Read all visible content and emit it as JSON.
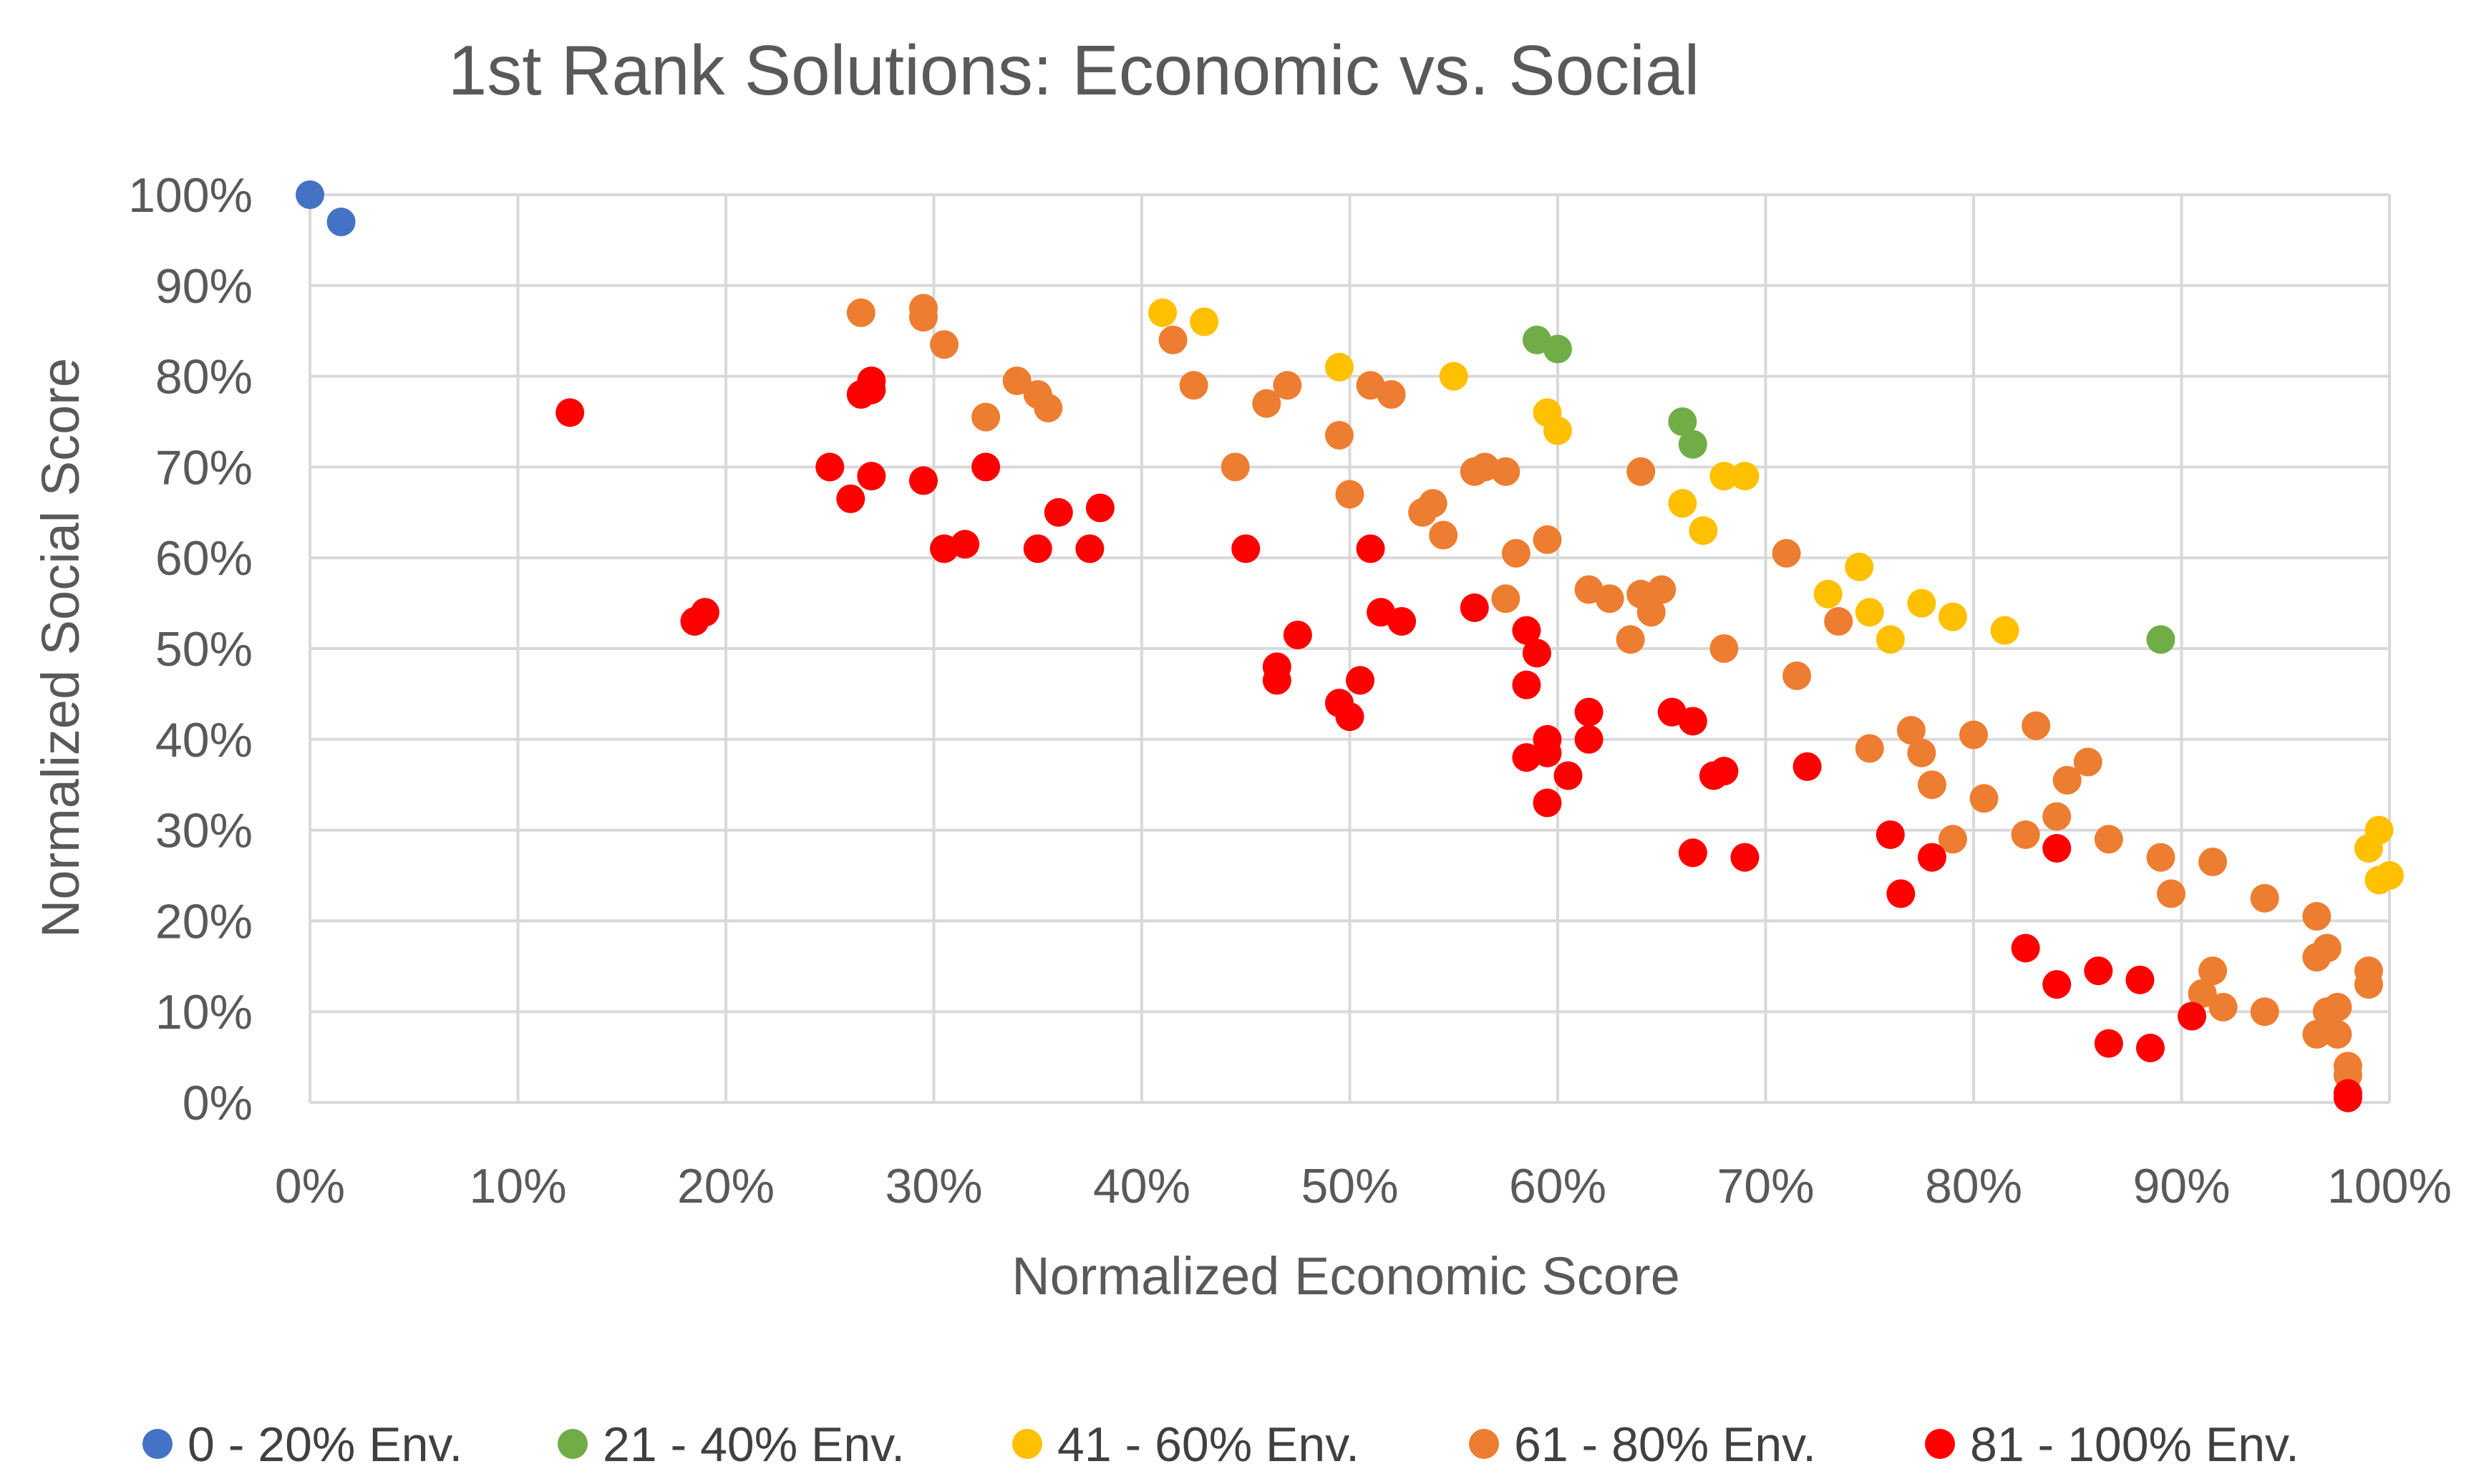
{
  "chart_data": {
    "type": "scatter",
    "title": "1st Rank Solutions: Economic vs. Social",
    "xlabel": "Normalized Economic Score",
    "ylabel": "Normalized Social Score",
    "xlim": [
      0,
      100
    ],
    "ylim": [
      0,
      100
    ],
    "xticks": [
      "0%",
      "10%",
      "20%",
      "30%",
      "40%",
      "50%",
      "60%",
      "70%",
      "80%",
      "90%",
      "100%"
    ],
    "yticks": [
      "0%",
      "10%",
      "20%",
      "30%",
      "40%",
      "50%",
      "60%",
      "70%",
      "80%",
      "90%",
      "100%"
    ],
    "grid": true,
    "legend_position": "bottom",
    "series": [
      {
        "name": "0 - 20% Env.",
        "color": "#4472c4",
        "points": [
          [
            0,
            100
          ],
          [
            1.5,
            97
          ]
        ]
      },
      {
        "name": "21 - 40% Env.",
        "color": "#70ad47",
        "points": [
          [
            59,
            84
          ],
          [
            60,
            83
          ],
          [
            66,
            75
          ],
          [
            66.5,
            72.5
          ],
          [
            89,
            51
          ]
        ]
      },
      {
        "name": "41 - 60% Env.",
        "color": "#ffc000",
        "points": [
          [
            41,
            87
          ],
          [
            43,
            86
          ],
          [
            49.5,
            81
          ],
          [
            55,
            80
          ],
          [
            59.5,
            76
          ],
          [
            60,
            74
          ],
          [
            66,
            66
          ],
          [
            67,
            63
          ],
          [
            68,
            69
          ],
          [
            69,
            69
          ],
          [
            73,
            56
          ],
          [
            74.5,
            59
          ],
          [
            75,
            54
          ],
          [
            76,
            51
          ],
          [
            77.5,
            55
          ],
          [
            79,
            53.5
          ],
          [
            81.5,
            52
          ],
          [
            99,
            28
          ],
          [
            99.5,
            30
          ],
          [
            99.5,
            24.5
          ],
          [
            100,
            25
          ]
        ]
      },
      {
        "name": "61 - 80% Env.",
        "color": "#ed7d31",
        "points": [
          [
            26.5,
            87
          ],
          [
            29.5,
            87.5
          ],
          [
            29.5,
            86.5
          ],
          [
            30.5,
            83.5
          ],
          [
            32.5,
            75.5
          ],
          [
            34,
            79.5
          ],
          [
            35,
            78
          ],
          [
            35.5,
            76.5
          ],
          [
            41.5,
            84
          ],
          [
            42.5,
            79
          ],
          [
            44.5,
            70
          ],
          [
            46,
            77
          ],
          [
            47,
            79
          ],
          [
            49.5,
            73.5
          ],
          [
            50,
            67
          ],
          [
            51,
            79
          ],
          [
            52,
            78
          ],
          [
            53.5,
            65
          ],
          [
            54,
            66
          ],
          [
            54.5,
            62.5
          ],
          [
            56,
            69.5
          ],
          [
            56.5,
            70
          ],
          [
            57.5,
            69.5
          ],
          [
            57.5,
            55.5
          ],
          [
            58,
            60.5
          ],
          [
            59.5,
            62
          ],
          [
            61.5,
            56.5
          ],
          [
            62.5,
            55.5
          ],
          [
            63.5,
            51
          ],
          [
            64,
            69.5
          ],
          [
            64,
            56
          ],
          [
            64.5,
            54
          ],
          [
            65,
            56.5
          ],
          [
            68,
            50
          ],
          [
            71,
            60.5
          ],
          [
            71.5,
            47
          ],
          [
            73.5,
            53
          ],
          [
            75,
            39
          ],
          [
            77,
            41
          ],
          [
            77.5,
            38.5
          ],
          [
            78,
            35
          ],
          [
            79,
            29
          ],
          [
            80,
            40.5
          ],
          [
            80.5,
            33.5
          ],
          [
            82.5,
            29.5
          ],
          [
            83,
            41.5
          ],
          [
            84,
            31.5
          ],
          [
            84.5,
            35.5
          ],
          [
            85.5,
            37.5
          ],
          [
            86.5,
            29
          ],
          [
            89,
            27
          ],
          [
            89.5,
            23
          ],
          [
            91,
            12
          ],
          [
            91.5,
            26.5
          ],
          [
            91.5,
            14.5
          ],
          [
            92,
            10.5
          ],
          [
            94,
            22.5
          ],
          [
            94,
            10
          ],
          [
            96.5,
            20.5
          ],
          [
            96.5,
            16
          ],
          [
            97,
            17
          ],
          [
            96.5,
            7.5
          ],
          [
            97,
            10
          ],
          [
            97.5,
            10.5
          ],
          [
            97.5,
            7.5
          ],
          [
            98,
            4
          ],
          [
            98,
            3
          ],
          [
            99,
            14.5
          ],
          [
            99,
            13
          ]
        ]
      },
      {
        "name": "81 - 100% Env.",
        "color": "#ff0000",
        "points": [
          [
            12.5,
            76
          ],
          [
            18.5,
            53
          ],
          [
            19,
            54
          ],
          [
            25,
            70
          ],
          [
            26,
            66.5
          ],
          [
            26.5,
            78
          ],
          [
            27,
            79.5
          ],
          [
            27,
            78.5
          ],
          [
            27,
            69
          ],
          [
            29.5,
            68.5
          ],
          [
            30.5,
            61
          ],
          [
            31.5,
            61.5
          ],
          [
            32.5,
            70
          ],
          [
            35,
            61
          ],
          [
            36,
            65
          ],
          [
            37.5,
            61
          ],
          [
            38,
            65.5
          ],
          [
            45,
            61
          ],
          [
            46.5,
            48
          ],
          [
            46.5,
            46.5
          ],
          [
            47.5,
            51.5
          ],
          [
            49.5,
            44
          ],
          [
            50,
            42.5
          ],
          [
            50.5,
            46.5
          ],
          [
            51,
            61
          ],
          [
            51.5,
            54
          ],
          [
            52.5,
            53
          ],
          [
            56,
            54.5
          ],
          [
            58.5,
            52
          ],
          [
            58.5,
            46
          ],
          [
            58.5,
            38
          ],
          [
            59,
            49.5
          ],
          [
            59.5,
            40
          ],
          [
            59.5,
            38.5
          ],
          [
            59.5,
            33
          ],
          [
            60.5,
            36
          ],
          [
            61.5,
            43
          ],
          [
            61.5,
            40
          ],
          [
            65.5,
            43
          ],
          [
            66.5,
            42
          ],
          [
            66.5,
            27.5
          ],
          [
            67.5,
            36
          ],
          [
            68,
            36.5
          ],
          [
            69,
            27
          ],
          [
            72,
            37
          ],
          [
            76,
            29.5
          ],
          [
            76.5,
            23
          ],
          [
            78,
            27
          ],
          [
            82.5,
            17
          ],
          [
            84,
            28
          ],
          [
            84,
            13
          ],
          [
            86,
            14.5
          ],
          [
            86.5,
            6.5
          ],
          [
            88,
            13.5
          ],
          [
            88.5,
            6
          ],
          [
            90.5,
            9.5
          ],
          [
            98,
            1
          ],
          [
            98,
            0.5
          ]
        ]
      }
    ]
  }
}
